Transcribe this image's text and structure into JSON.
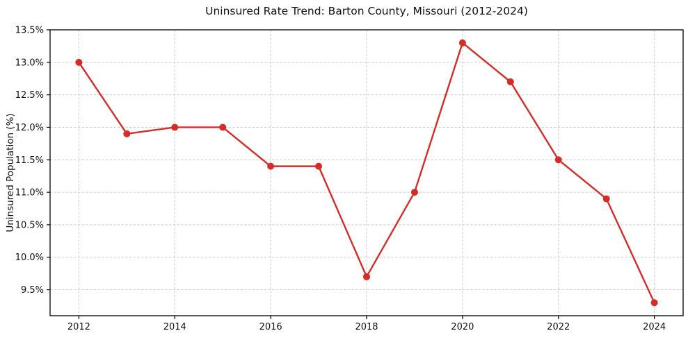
{
  "figure": {
    "background": "#ffffff",
    "text_color": "#111111"
  },
  "chart_data": {
    "type": "line",
    "title": "Uninsured Rate Trend: Barton County, Missouri (2012-2024)",
    "xlabel": "",
    "ylabel": "Uninsured Population (%)",
    "x": [
      2012,
      2013,
      2014,
      2015,
      2016,
      2017,
      2018,
      2019,
      2020,
      2021,
      2022,
      2023,
      2024
    ],
    "series": [
      {
        "name": "Uninsured rate",
        "values": [
          13.0,
          11.9,
          12.0,
          12.0,
          11.4,
          11.4,
          9.7,
          11.0,
          13.3,
          12.7,
          11.5,
          10.9,
          9.3
        ]
      }
    ],
    "xlim": [
      2011.4,
      2024.6
    ],
    "ylim": [
      9.1,
      13.5
    ],
    "x_ticks": [
      2012,
      2014,
      2016,
      2018,
      2020,
      2022,
      2024
    ],
    "x_tick_labels": [
      "2012",
      "2014",
      "2016",
      "2018",
      "2020",
      "2022",
      "2024"
    ],
    "y_ticks": [
      9.5,
      10.0,
      10.5,
      11.0,
      11.5,
      12.0,
      12.5,
      13.0,
      13.5
    ],
    "y_tick_labels": [
      "9.5%",
      "10.0%",
      "10.5%",
      "11.0%",
      "11.5%",
      "12.0%",
      "12.5%",
      "13.0%",
      "13.5%"
    ],
    "grid": true,
    "legend": "none",
    "line_color": "#d62c28",
    "marker": "circle",
    "marker_radius": 5,
    "grid_color": "#cccccc",
    "frame_color": "#000000"
  }
}
